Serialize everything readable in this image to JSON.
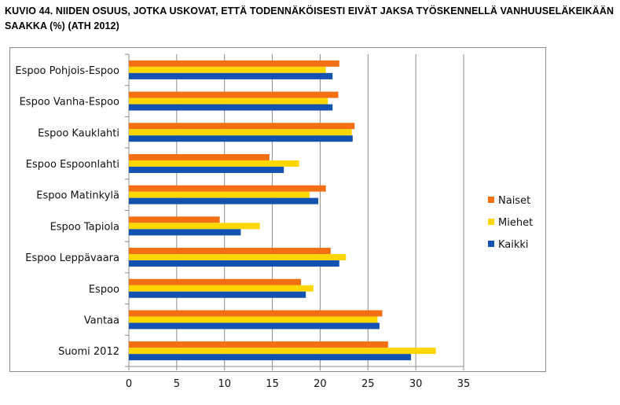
{
  "title": "KUVIO 44. NIIDEN OSUUS, JOTKA USKOVAT, ETTÄ TODENNÄKÖISESTI EIVÄT JAKSA TYÖSKENNELLÄ VANHUUSELÄKEIKÄÄN SAAKKA (%) (ATH 2012)",
  "chart_data": {
    "type": "bar",
    "orientation": "horizontal",
    "title": "KUVIO 44. NIIDEN OSUUS, JOTKA USKOVAT, ETTÄ TODENNÄKÖISESTI EIVÄT JAKSA TYÖSKENNELLÄ VANHUUSELÄKEIKÄÄN SAAKKA (%) (ATH 2012)",
    "xlabel": "",
    "ylabel": "",
    "xlim": [
      0,
      35
    ],
    "xticks": [
      0,
      5,
      10,
      15,
      20,
      25,
      30,
      35
    ],
    "grid": true,
    "legend_position": "right",
    "categories": [
      "Espoo Pohjois-Espoo",
      "Espoo Vanha-Espoo",
      "Espoo Kauklahti",
      "Espoo Espoonlahti",
      "Espoo Matinkylä",
      "Espoo Tapiola",
      "Espoo Leppävaara",
      "Espoo",
      "Vantaa",
      "Suomi 2012"
    ],
    "series": [
      {
        "name": "Naiset",
        "color": "#f36f14",
        "values": [
          22.0,
          21.9,
          23.6,
          14.7,
          20.6,
          9.5,
          21.1,
          18.0,
          26.5,
          27.1
        ]
      },
      {
        "name": "Miehet",
        "color": "#ffd700",
        "values": [
          20.6,
          20.8,
          23.3,
          17.8,
          18.9,
          13.7,
          22.7,
          19.3,
          26.0,
          32.1
        ]
      },
      {
        "name": "Kaikki",
        "color": "#1352b0",
        "values": [
          21.3,
          21.3,
          23.4,
          16.2,
          19.8,
          11.7,
          22.0,
          18.5,
          26.2,
          29.5
        ]
      }
    ]
  }
}
